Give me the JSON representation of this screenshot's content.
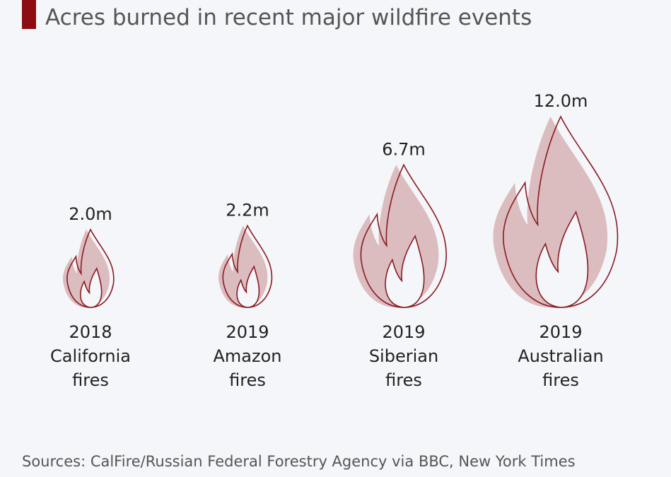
{
  "title": "Acres burned in recent major wildfire events",
  "source": "Sources: CalFire/Russian Federal Forestry Agency via BBC, New York Times",
  "colors": {
    "accent": "#8b0d12",
    "flame_fill": "#dbbcbf",
    "flame_stroke": "#8b1a22",
    "background": "#f4f6f9"
  },
  "chart_data": {
    "type": "bar",
    "mark": "flame-icon",
    "unit": "acres",
    "categories": [
      [
        "2018",
        "California",
        "fires"
      ],
      [
        "2019",
        "Amazon",
        "fires"
      ],
      [
        "2019",
        "Siberian",
        "fires"
      ],
      [
        "2019",
        "Australian",
        "fires"
      ]
    ],
    "values": [
      2.0,
      2.2,
      6.7,
      12.0
    ],
    "value_labels": [
      "2.0m",
      "2.2m",
      "6.7m",
      "12.0m"
    ],
    "grid": false,
    "legend": "none"
  }
}
